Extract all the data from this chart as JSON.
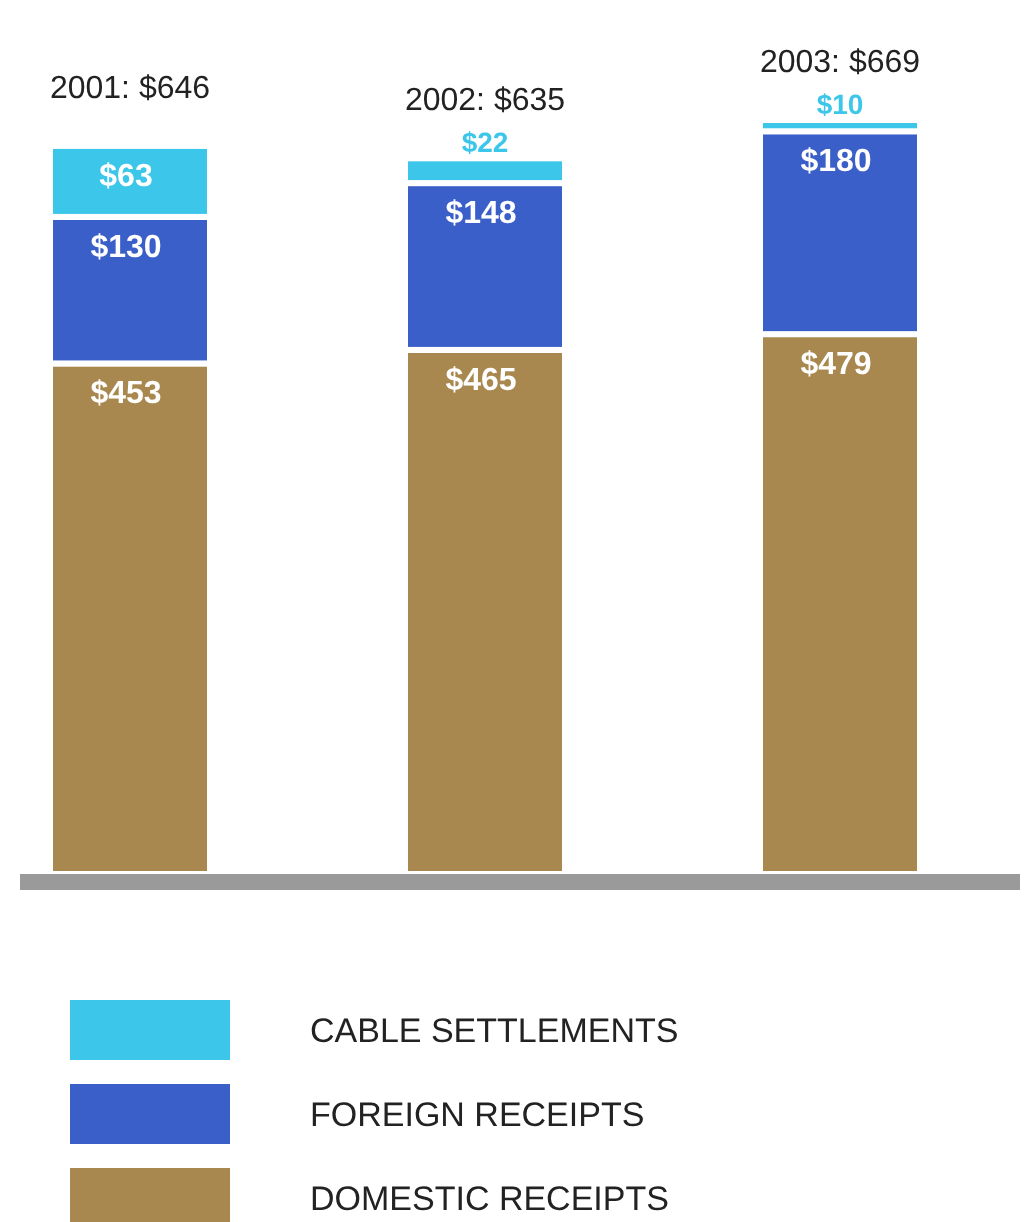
{
  "chart_data": {
    "type": "bar",
    "stacked": true,
    "categories": [
      null,
      null,
      null
    ],
    "series": [
      {
        "name": "DOMESTIC RECEIPTS",
        "color": "#a8884e",
        "values": [
          453,
          465,
          479
        ],
        "value_labels": [
          "$453",
          "$465",
          "$479"
        ]
      },
      {
        "name": "FOREIGN RECEIPTS",
        "color": "#3a5fc8",
        "values": [
          130,
          148,
          180
        ],
        "value_labels": [
          "$130",
          "$148",
          "$180"
        ]
      },
      {
        "name": "CABLE SETTLEMENTS",
        "color": "#3cc6ea",
        "values": [
          63,
          22,
          10
        ],
        "value_labels": [
          "$63",
          "$22",
          "$10"
        ]
      }
    ],
    "totals": [
      "2001: $646",
      "2002: $635",
      "2003: $669"
    ],
    "legend": "bottom"
  }
}
